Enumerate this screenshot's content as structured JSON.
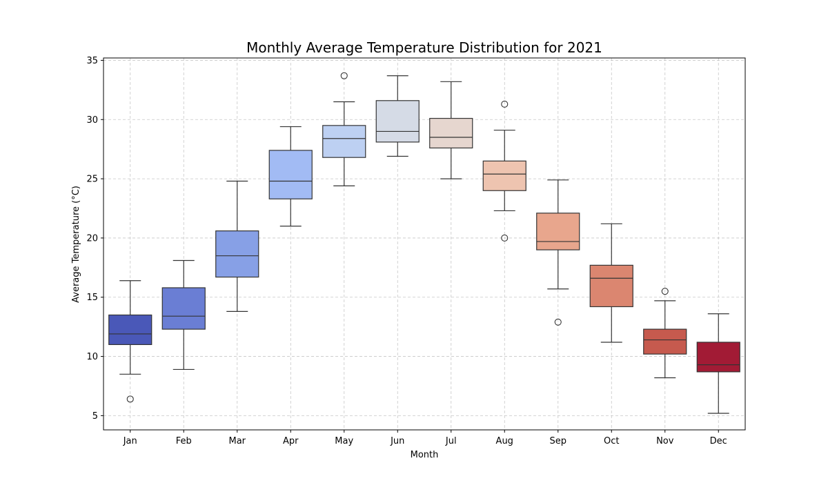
{
  "chart_data": {
    "type": "box",
    "title": "Monthly Average Temperature Distribution for 2021",
    "xlabel": "Month",
    "ylabel": "Average Temperature (°C)",
    "ylim": [
      3.8,
      35.2
    ],
    "yticks": [
      5,
      10,
      15,
      20,
      25,
      30,
      35
    ],
    "grid": true,
    "categories": [
      "Jan",
      "Feb",
      "Mar",
      "Apr",
      "May",
      "Jun",
      "Jul",
      "Aug",
      "Sep",
      "Oct",
      "Nov",
      "Dec"
    ],
    "colors": [
      "#4a58b8",
      "#6a7ed4",
      "#87a0e6",
      "#a2bbf4",
      "#bdd0f2",
      "#d5dbe6",
      "#e6d6cf",
      "#eec4b0",
      "#e8a68d",
      "#db8670",
      "#c65a4e",
      "#a21b35"
    ],
    "boxes": [
      {
        "month": "Jan",
        "whisker_low": 8.5,
        "q1": 11.0,
        "median": 11.9,
        "q3": 13.5,
        "whisker_high": 16.4,
        "outliers": [
          6.4
        ]
      },
      {
        "month": "Feb",
        "whisker_low": 8.9,
        "q1": 12.3,
        "median": 13.4,
        "q3": 15.8,
        "whisker_high": 18.1,
        "outliers": []
      },
      {
        "month": "Mar",
        "whisker_low": 13.8,
        "q1": 16.7,
        "median": 18.5,
        "q3": 20.6,
        "whisker_high": 24.8,
        "outliers": []
      },
      {
        "month": "Apr",
        "whisker_low": 21.0,
        "q1": 23.3,
        "median": 24.8,
        "q3": 27.4,
        "whisker_high": 29.4,
        "outliers": []
      },
      {
        "month": "May",
        "whisker_low": 24.4,
        "q1": 26.8,
        "median": 28.4,
        "q3": 29.5,
        "whisker_high": 31.5,
        "outliers": [
          33.7
        ]
      },
      {
        "month": "Jun",
        "whisker_low": 26.9,
        "q1": 28.1,
        "median": 29.0,
        "q3": 31.6,
        "whisker_high": 33.7,
        "outliers": []
      },
      {
        "month": "Jul",
        "whisker_low": 25.0,
        "q1": 27.6,
        "median": 28.5,
        "q3": 30.1,
        "whisker_high": 33.2,
        "outliers": []
      },
      {
        "month": "Aug",
        "whisker_low": 22.3,
        "q1": 24.0,
        "median": 25.4,
        "q3": 26.5,
        "whisker_high": 29.1,
        "outliers": [
          31.3,
          20.0
        ]
      },
      {
        "month": "Sep",
        "whisker_low": 15.7,
        "q1": 19.0,
        "median": 19.7,
        "q3": 22.1,
        "whisker_high": 24.9,
        "outliers": [
          12.9
        ]
      },
      {
        "month": "Oct",
        "whisker_low": 11.2,
        "q1": 14.2,
        "median": 16.6,
        "q3": 17.7,
        "whisker_high": 21.2,
        "outliers": []
      },
      {
        "month": "Nov",
        "whisker_low": 8.2,
        "q1": 10.2,
        "median": 11.4,
        "q3": 12.3,
        "whisker_high": 14.7,
        "outliers": [
          15.5
        ]
      },
      {
        "month": "Dec",
        "whisker_low": 5.2,
        "q1": 8.7,
        "median": 9.3,
        "q3": 11.2,
        "whisker_high": 13.6,
        "outliers": []
      }
    ]
  }
}
